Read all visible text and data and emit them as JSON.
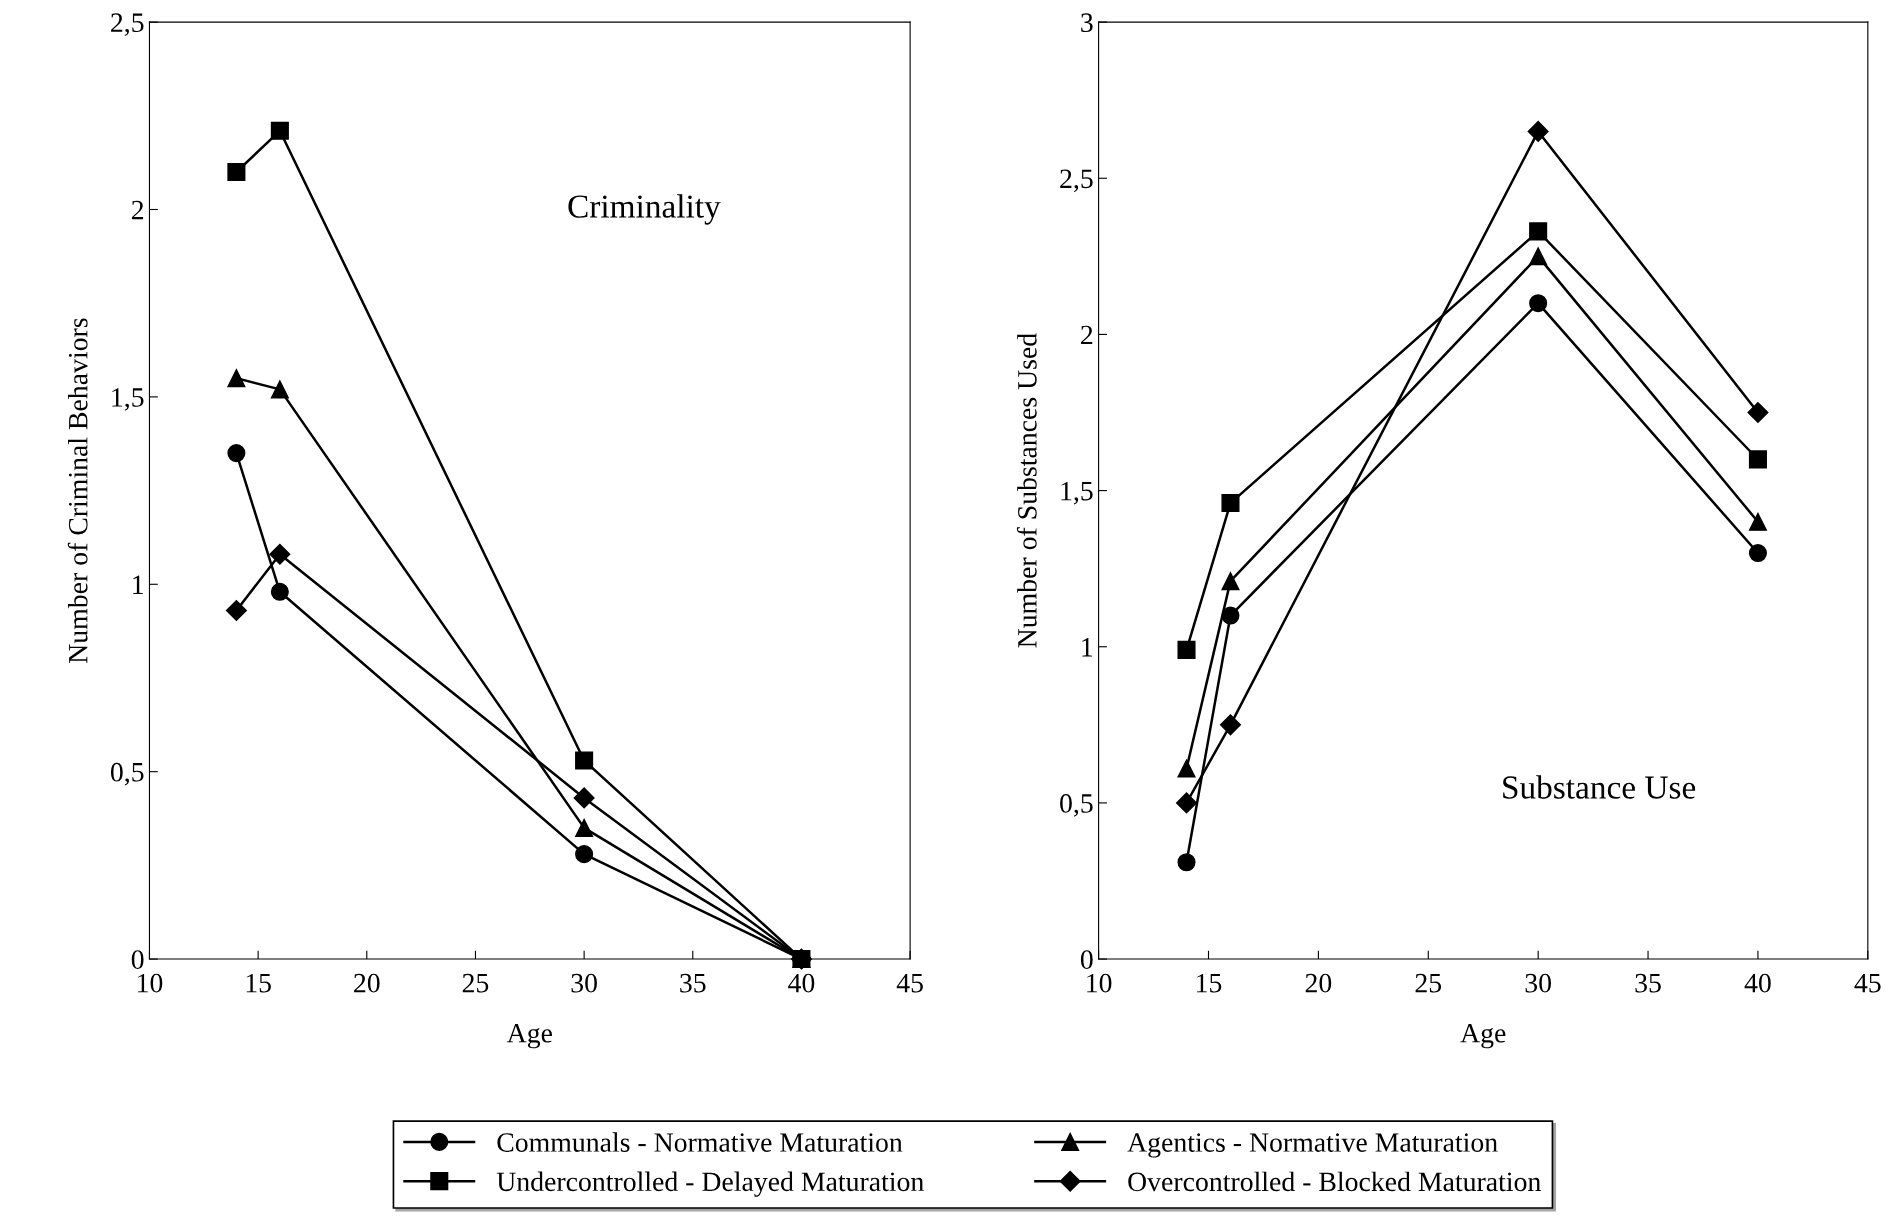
{
  "chart_data": [
    {
      "type": "line",
      "xlabel": "Age",
      "ylabel": "Number of Criminal Behaviors",
      "annotations": [
        "Criminality"
      ],
      "x": [
        14,
        16,
        30,
        40
      ],
      "xlim": [
        10,
        45
      ],
      "xticks": [
        10,
        15,
        20,
        25,
        30,
        35,
        40,
        45
      ],
      "ylim": [
        0,
        2.5
      ],
      "yticks": [
        0,
        {
          "value": 0.5,
          "label": "0,5"
        },
        1,
        {
          "value": 1.5,
          "label": "1,5"
        },
        2,
        {
          "value": 2.5,
          "label": "2,5"
        }
      ],
      "grid": false,
      "legend": "bottom",
      "line_style": "solid",
      "series": [
        {
          "name": "Communals - Normative Maturation",
          "color": "#000000",
          "marker": "circle",
          "values": [
            1.35,
            0.98,
            0.28,
            0
          ]
        },
        {
          "name": "Agentics - Normative Maturation",
          "color": "#000000",
          "marker": "triangle",
          "values": [
            1.55,
            1.52,
            0.35,
            0
          ]
        },
        {
          "name": "Undercontrolled - Delayed Maturation",
          "color": "#000000",
          "marker": "square",
          "values": [
            2.1,
            2.21,
            0.53,
            0
          ]
        },
        {
          "name": "Overcontrolled - Blocked Maturation",
          "color": "#000000",
          "marker": "diamond",
          "values": [
            0.93,
            1.08,
            0.43,
            0
          ]
        }
      ]
    },
    {
      "type": "line",
      "xlabel": "Age",
      "ylabel": "Number of Substances Used",
      "annotations": [
        "Substance Use"
      ],
      "x": [
        14,
        16,
        30,
        40
      ],
      "xlim": [
        10,
        45
      ],
      "xticks": [
        10,
        15,
        20,
        25,
        30,
        35,
        40,
        45
      ],
      "ylim": [
        0,
        3
      ],
      "yticks": [
        0,
        {
          "value": 0.5,
          "label": "0,5"
        },
        1,
        {
          "value": 1.5,
          "label": "1,5"
        },
        2,
        {
          "value": 2.5,
          "label": "2,5"
        },
        3
      ],
      "grid": false,
      "legend": "bottom",
      "line_style": "solid",
      "series": [
        {
          "name": "Communals - Normative Maturation",
          "color": "#000000",
          "marker": "circle",
          "values": [
            0.31,
            1.1,
            2.1,
            1.3
          ]
        },
        {
          "name": "Agentics - Normative Maturation",
          "color": "#000000",
          "marker": "triangle",
          "values": [
            0.61,
            1.21,
            2.25,
            1.4
          ]
        },
        {
          "name": "Undercontrolled - Delayed Maturation",
          "color": "#000000",
          "marker": "square",
          "values": [
            0.99,
            1.46,
            2.33,
            1.6
          ]
        },
        {
          "name": "Overcontrolled - Blocked Maturation",
          "color": "#000000",
          "marker": "diamond",
          "values": [
            0.5,
            0.75,
            2.65,
            1.75
          ]
        }
      ]
    }
  ]
}
